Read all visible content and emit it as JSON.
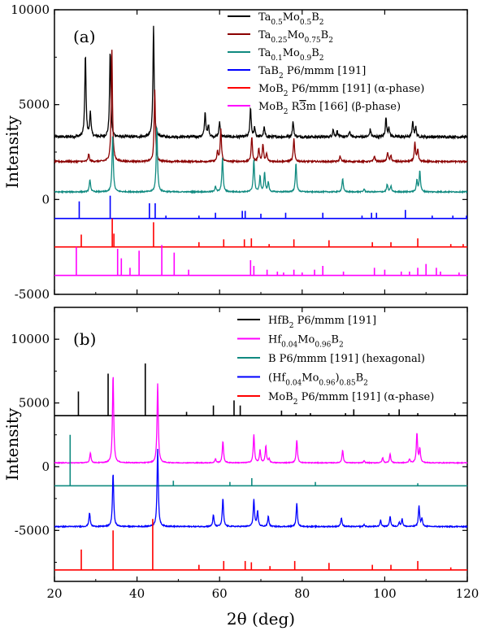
{
  "figure": {
    "xlabel": "2θ (deg)",
    "xlim": [
      20,
      120
    ],
    "xticks": [
      "20",
      "40",
      "60",
      "80",
      "100",
      "120"
    ]
  },
  "chart_data": [
    {
      "type": "line",
      "panel_label": "(a)",
      "ylabel": "Intensity",
      "ylim": [
        -5000,
        10000
      ],
      "yticks": [
        "-5000",
        "0",
        "5000",
        "10000"
      ],
      "x_range": [
        20,
        120
      ],
      "legend_position": "top-right",
      "series": [
        {
          "name": "Ta0.5Mo0.5B2",
          "legend_parts": [
            [
              "Ta",
              ""
            ],
            [
              "0.5",
              "sub"
            ],
            [
              "Mo",
              ""
            ],
            [
              "0.5",
              "sub"
            ],
            [
              "B",
              ""
            ],
            [
              "2",
              "sub"
            ]
          ],
          "color": "#000000",
          "kind": "pattern",
          "baseline": 3300,
          "noise": 70,
          "peaks": [
            [
              27.5,
              4300
            ],
            [
              28.7,
              1300
            ],
            [
              33.5,
              4500
            ],
            [
              44.0,
              5800
            ],
            [
              56.5,
              1300
            ],
            [
              57.3,
              600
            ],
            [
              60.0,
              800
            ],
            [
              67.5,
              1500
            ],
            [
              68.5,
              500
            ],
            [
              70.8,
              500
            ],
            [
              77.8,
              800
            ],
            [
              87.5,
              400
            ],
            [
              88.5,
              300
            ],
            [
              91.5,
              300
            ],
            [
              96.5,
              400
            ],
            [
              100.3,
              1000
            ],
            [
              101.0,
              500
            ],
            [
              106.8,
              800
            ],
            [
              107.5,
              500
            ]
          ]
        },
        {
          "name": "Ta0.25Mo0.75B2",
          "legend_parts": [
            [
              "Ta",
              ""
            ],
            [
              "0.25",
              "sub"
            ],
            [
              "Mo",
              ""
            ],
            [
              "0.75",
              "sub"
            ],
            [
              "B",
              ""
            ],
            [
              "2",
              "sub"
            ]
          ],
          "color": "#8b0000",
          "kind": "pattern",
          "baseline": 2000,
          "noise": 40,
          "peaks": [
            [
              28.3,
              400
            ],
            [
              33.9,
              6000
            ],
            [
              44.3,
              3800
            ],
            [
              59.5,
              500
            ],
            [
              60.3,
              1700
            ],
            [
              67.8,
              1300
            ],
            [
              69.5,
              700
            ],
            [
              70.5,
              900
            ],
            [
              71.4,
              400
            ],
            [
              78.0,
              1200
            ],
            [
              89.2,
              300
            ],
            [
              97.5,
              300
            ],
            [
              100.7,
              500
            ],
            [
              101.5,
              300
            ],
            [
              107.3,
              1000
            ],
            [
              108.0,
              600
            ]
          ]
        },
        {
          "name": "Ta0.1Mo0.9B2",
          "legend_parts": [
            [
              "Ta",
              ""
            ],
            [
              "0.1",
              "sub"
            ],
            [
              "Mo",
              ""
            ],
            [
              "0.9",
              "sub"
            ],
            [
              "B",
              ""
            ],
            [
              "2",
              "sub"
            ]
          ],
          "color": "#108a80",
          "kind": "pattern",
          "baseline": 400,
          "noise": 30,
          "peaks": [
            [
              28.6,
              650
            ],
            [
              34.1,
              3000
            ],
            [
              44.8,
              3500
            ],
            [
              59.0,
              300
            ],
            [
              60.7,
              1800
            ],
            [
              68.3,
              1700
            ],
            [
              69.8,
              800
            ],
            [
              70.9,
              1000
            ],
            [
              71.8,
              500
            ],
            [
              78.5,
              1500
            ],
            [
              89.8,
              700
            ],
            [
              95.0,
              150
            ],
            [
              100.6,
              400
            ],
            [
              101.5,
              300
            ],
            [
              107.8,
              600
            ],
            [
              108.5,
              1100
            ]
          ]
        },
        {
          "name": "TaB2 P6/mmm [191]",
          "legend_parts": [
            [
              "TaB",
              ""
            ],
            [
              "2",
              "sub"
            ],
            [
              " P6/mmm [191]",
              ""
            ]
          ],
          "color": "#0000ff",
          "kind": "sticks",
          "baseline": -1000,
          "sticks": [
            [
              26.0,
              900
            ],
            [
              33.5,
              1200
            ],
            [
              43.0,
              800
            ],
            [
              44.4,
              800
            ],
            [
              47.0,
              150
            ],
            [
              55.0,
              150
            ],
            [
              59.0,
              300
            ],
            [
              65.5,
              400
            ],
            [
              66.2,
              400
            ],
            [
              70.0,
              250
            ],
            [
              76.0,
              300
            ],
            [
              85.0,
              300
            ],
            [
              94.5,
              150
            ],
            [
              96.8,
              300
            ],
            [
              98.0,
              300
            ],
            [
              105.0,
              450
            ],
            [
              111.5,
              150
            ],
            [
              116.5,
              150
            ],
            [
              119.8,
              150
            ]
          ]
        },
        {
          "name": "MoB2 P6/mmm [191] (α-phase)",
          "legend_parts": [
            [
              "MoB",
              ""
            ],
            [
              "2",
              "sub"
            ],
            [
              " P6/mmm [191] (α-phase)",
              ""
            ]
          ],
          "color": "#ff0000",
          "kind": "sticks",
          "baseline": -2500,
          "sticks": [
            [
              26.5,
              650
            ],
            [
              34.0,
              1500
            ],
            [
              34.4,
              700
            ],
            [
              44.0,
              1300
            ],
            [
              55.0,
              250
            ],
            [
              61.0,
              400
            ],
            [
              66.0,
              400
            ],
            [
              67.7,
              450
            ],
            [
              72.0,
              150
            ],
            [
              78.0,
              400
            ],
            [
              86.5,
              350
            ],
            [
              97.0,
              250
            ],
            [
              101.5,
              250
            ],
            [
              108.0,
              450
            ],
            [
              116.0,
              150
            ],
            [
              119.0,
              150
            ]
          ]
        },
        {
          "name": "MoB2 R3m [166] (β-phase)",
          "legend_parts": [
            [
              "MoB",
              ""
            ],
            [
              "2",
              "sub"
            ],
            [
              " R",
              ""
            ],
            [
              "3",
              "bar"
            ],
            [
              "m [166] (β-phase)",
              ""
            ]
          ],
          "color": "#ff00ff",
          "kind": "sticks",
          "baseline": -4000,
          "sticks": [
            [
              25.3,
              1500
            ],
            [
              35.3,
              1400
            ],
            [
              36.2,
              900
            ],
            [
              38.3,
              400
            ],
            [
              40.5,
              1300
            ],
            [
              46.0,
              1600
            ],
            [
              49.0,
              1200
            ],
            [
              52.5,
              300
            ],
            [
              67.5,
              800
            ],
            [
              68.3,
              500
            ],
            [
              71.5,
              300
            ],
            [
              74.0,
              200
            ],
            [
              75.5,
              150
            ],
            [
              78.0,
              300
            ],
            [
              80.0,
              150
            ],
            [
              83.0,
              300
            ],
            [
              85.0,
              500
            ],
            [
              90.0,
              200
            ],
            [
              97.5,
              400
            ],
            [
              100.0,
              300
            ],
            [
              104.0,
              200
            ],
            [
              106.0,
              200
            ],
            [
              108.0,
              400
            ],
            [
              110.0,
              600
            ],
            [
              112.5,
              400
            ],
            [
              113.5,
              200
            ],
            [
              118.0,
              150
            ]
          ]
        }
      ]
    },
    {
      "type": "line",
      "panel_label": "(b)",
      "ylabel": "Intensity",
      "ylim": [
        -9000,
        12500
      ],
      "yticks": [
        "-5000",
        "0",
        "5000",
        "10000"
      ],
      "x_range": [
        20,
        120
      ],
      "legend_position": "top-right",
      "series": [
        {
          "name": "HfB2 P6/mmm [191]",
          "legend_parts": [
            [
              "HfB",
              ""
            ],
            [
              "2",
              "sub"
            ],
            [
              " P6/mmm [191]",
              ""
            ]
          ],
          "color": "#000000",
          "kind": "sticks",
          "baseline": 4000,
          "sticks": [
            [
              25.8,
              1900
            ],
            [
              33.0,
              3300
            ],
            [
              42.0,
              4100
            ],
            [
              52.0,
              300
            ],
            [
              58.5,
              800
            ],
            [
              63.5,
              1200
            ],
            [
              65.0,
              800
            ],
            [
              75.0,
              400
            ],
            [
              78.5,
              200
            ],
            [
              82.0,
              200
            ],
            [
              90.5,
              200
            ],
            [
              92.5,
              500
            ],
            [
              101.0,
              200
            ],
            [
              103.5,
              500
            ],
            [
              108.0,
              200
            ],
            [
              117.0,
              200
            ]
          ]
        },
        {
          "name": "Hf0.04Mo0.96B2",
          "legend_parts": [
            [
              "Hf",
              ""
            ],
            [
              "0.04",
              "sub"
            ],
            [
              "Mo",
              ""
            ],
            [
              "0.96",
              "sub"
            ],
            [
              "B",
              ""
            ],
            [
              "2",
              "sub"
            ]
          ],
          "color": "#ff00ff",
          "kind": "pattern",
          "baseline": 300,
          "noise": 30,
          "peaks": [
            [
              28.7,
              800
            ],
            [
              34.2,
              6900
            ],
            [
              45.0,
              6200
            ],
            [
              59.0,
              300
            ],
            [
              60.8,
              1700
            ],
            [
              68.3,
              2200
            ],
            [
              69.8,
              1000
            ],
            [
              71.2,
              1300
            ],
            [
              72.0,
              300
            ],
            [
              78.7,
              1800
            ],
            [
              89.8,
              1000
            ],
            [
              95.0,
              150
            ],
            [
              99.5,
              400
            ],
            [
              101.3,
              700
            ],
            [
              106.0,
              300
            ],
            [
              107.8,
              2300
            ],
            [
              108.5,
              1100
            ]
          ]
        },
        {
          "name": "B P6/mmm [191] (hexagonal)",
          "legend_parts": [
            [
              "B P6/mmm [191] (hexagonal)",
              ""
            ]
          ],
          "color": "#108a80",
          "kind": "sticks",
          "baseline": -1500,
          "sticks": [
            [
              23.8,
              4000
            ],
            [
              48.8,
              400
            ],
            [
              62.5,
              300
            ],
            [
              67.8,
              600
            ],
            [
              83.2,
              300
            ],
            [
              108.0,
              200
            ]
          ]
        },
        {
          "name": "(Hf0.04Mo0.96)0.85B2",
          "legend_parts": [
            [
              "(Hf",
              ""
            ],
            [
              "0.04",
              "sub"
            ],
            [
              "Mo",
              ""
            ],
            [
              "0.96",
              "sub"
            ],
            [
              ")",
              ""
            ],
            [
              "0.85",
              "sub"
            ],
            [
              "B",
              ""
            ],
            [
              "2",
              "sub"
            ]
          ],
          "color": "#0000ff",
          "kind": "pattern",
          "baseline": -4700,
          "noise": 40,
          "peaks": [
            [
              28.5,
              1100
            ],
            [
              34.2,
              4200
            ],
            [
              45.0,
              6100
            ],
            [
              58.5,
              900
            ],
            [
              60.8,
              2200
            ],
            [
              68.3,
              2100
            ],
            [
              69.2,
              1200
            ],
            [
              71.8,
              800
            ],
            [
              78.7,
              1800
            ],
            [
              89.5,
              700
            ],
            [
              95.0,
              150
            ],
            [
              99.0,
              500
            ],
            [
              101.3,
              800
            ],
            [
              103.5,
              300
            ],
            [
              104.2,
              600
            ],
            [
              108.3,
              1600
            ],
            [
              109.0,
              600
            ]
          ]
        },
        {
          "name": "MoB2 P6/mmm [191] (α-phase)",
          "legend_parts": [
            [
              "MoB",
              ""
            ],
            [
              "2",
              "sub"
            ],
            [
              " P6/mmm [191] (α-phase)",
              ""
            ]
          ],
          "color": "#ff0000",
          "kind": "sticks",
          "baseline": -8100,
          "sticks": [
            [
              26.5,
              1600
            ],
            [
              34.2,
              3100
            ],
            [
              43.8,
              4000
            ],
            [
              55.0,
              400
            ],
            [
              61.0,
              700
            ],
            [
              66.2,
              700
            ],
            [
              67.7,
              600
            ],
            [
              72.2,
              300
            ],
            [
              78.2,
              700
            ],
            [
              86.5,
              550
            ],
            [
              97.0,
              400
            ],
            [
              101.5,
              400
            ],
            [
              108.0,
              700
            ],
            [
              116.0,
              200
            ]
          ]
        }
      ]
    }
  ]
}
